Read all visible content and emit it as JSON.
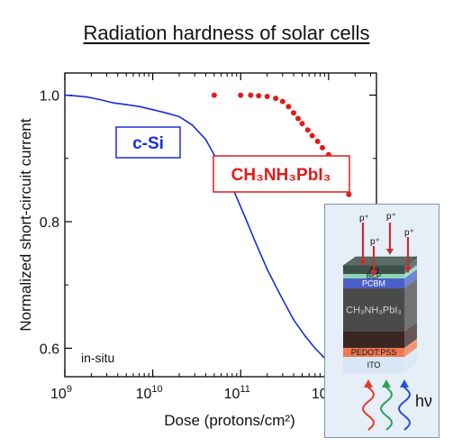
{
  "title": "Radiation hardness of solar cells",
  "chart_data": {
    "type": "line",
    "xlabel": "Dose (protons/cm²)",
    "ylabel": "Normalized short-circuit current",
    "xscale": "log",
    "xlim": [
      1000000000.0,
      3500000000000.0
    ],
    "ylim": [
      0.555,
      1.035
    ],
    "x_tick_labels": [
      "10^9",
      "10^10",
      "10^11",
      "10^12"
    ],
    "y_tick_labels": [
      "0.6",
      "0.8",
      "1.0"
    ],
    "annotation": "in-situ",
    "series": [
      {
        "name": "c-Si",
        "style": "line",
        "color": "#1a2fd6",
        "x": [
          1000000000.0,
          1300000000.0,
          1800000000.0,
          2500000000.0,
          3500000000.0,
          5000000000.0,
          7000000000.0,
          10000000000.0,
          14000000000.0,
          20000000000.0,
          28000000000.0,
          40000000000.0,
          55000000000.0,
          80000000000.0,
          110000000000.0,
          150000000000.0,
          200000000000.0,
          280000000000.0,
          400000000000.0,
          550000000000.0,
          700000000000.0,
          850000000000.0,
          1000000000000.0
        ],
        "y": [
          1.0,
          0.999,
          0.997,
          0.993,
          0.988,
          0.985,
          0.982,
          0.977,
          0.972,
          0.966,
          0.953,
          0.93,
          0.895,
          0.855,
          0.81,
          0.765,
          0.725,
          0.685,
          0.645,
          0.618,
          0.6,
          0.588,
          0.578
        ]
      },
      {
        "name": "CH3NH3PbI3",
        "label_text": "CH₃NH₃PbI₃",
        "style": "dots",
        "color": "#e21b1b",
        "x": [
          50000000000.0,
          100000000000.0,
          130000000000.0,
          160000000000.0,
          200000000000.0,
          250000000000.0,
          300000000000.0,
          350000000000.0,
          400000000000.0,
          450000000000.0,
          500000000000.0,
          580000000000.0,
          650000000000.0,
          750000000000.0,
          850000000000.0,
          1000000000000.0,
          1150000000000.0,
          1300000000000.0,
          1500000000000.0,
          1700000000000.0,
          2000000000000.0,
          2300000000000.0,
          2600000000000.0,
          3000000000000.0,
          3400000000000.0
        ],
        "y": [
          1.0,
          1.0,
          1.0,
          0.999,
          0.998,
          0.995,
          0.99,
          0.982,
          0.972,
          0.963,
          0.955,
          0.945,
          0.936,
          0.927,
          0.917,
          0.906,
          0.893,
          0.878,
          0.86,
          0.843,
          0.822,
          0.805,
          0.788,
          0.77,
          0.752
        ]
      }
    ],
    "grid": false,
    "legend": "inline labels"
  },
  "inset": {
    "labels": {
      "ag": "Ag",
      "bcp": "BCP",
      "pcbm": "PCBM",
      "absorber": "CH₃NH₃PbI₃",
      "pedot": "PEDOT:PSS",
      "ito": "ITO",
      "light": "hν",
      "proton": "p⁺"
    },
    "colors": {
      "ag": "#3f4f4a",
      "bcp": "#8cd3b4",
      "pcbm": "#4a5fc7",
      "absorber": "#4a4a4a",
      "pedot_dark": "#3a2520",
      "pedot": "#ef7a52",
      "ito": "#d8e6f5",
      "arrow": "#c43030",
      "wave_red": "#e23b2a",
      "wave_green": "#2ca05a",
      "wave_blue": "#2a4fd6"
    }
  }
}
